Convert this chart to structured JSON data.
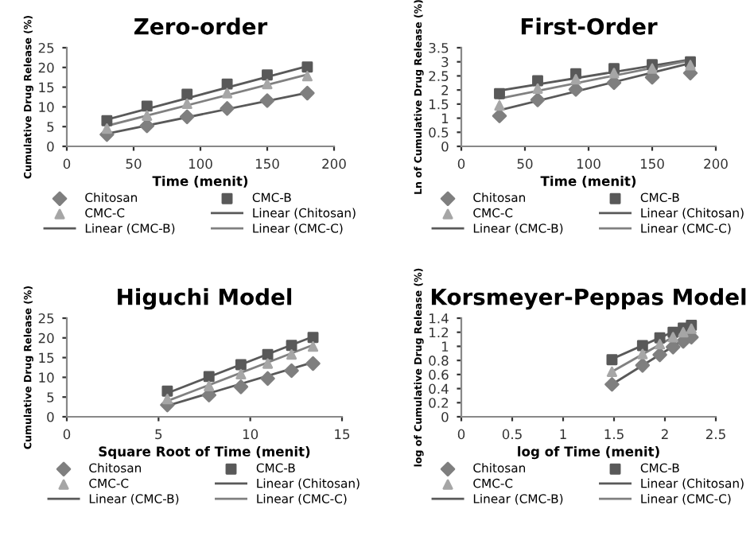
{
  "chart_data": [
    {
      "type": "scatter",
      "title": "Zero-order",
      "xlabel": "Time (menit)",
      "ylabel": "Cumulative Drug Release (%)",
      "xlim": [
        0,
        200
      ],
      "xticks": [
        0,
        50,
        100,
        150,
        200
      ],
      "ylim": [
        0,
        25
      ],
      "yticks": [
        0,
        5,
        10,
        15,
        20,
        25
      ],
      "legend": "bottom",
      "series": [
        {
          "name": "Chitosan",
          "marker": "diamond",
          "color": "#7f7f7f",
          "x": [
            30,
            60,
            90,
            120,
            150,
            180
          ],
          "values": [
            3,
            5.2,
            7.5,
            9.6,
            11.6,
            13.5
          ]
        },
        {
          "name": "CMC-C",
          "marker": "triangle",
          "color": "#a6a6a6",
          "x": [
            30,
            60,
            90,
            120,
            150,
            180
          ],
          "values": [
            4.5,
            7.8,
            10.8,
            13.5,
            15.8,
            17.8
          ]
        },
        {
          "name": "Linear (CMC-B)",
          "type": "line",
          "line_style": "solid",
          "color": "#595959",
          "x": [
            30,
            180
          ],
          "values": [
            6.8,
            20.3
          ]
        },
        {
          "name": "CMC-B",
          "marker": "square",
          "color": "#595959",
          "x": [
            30,
            60,
            90,
            120,
            150,
            180
          ],
          "values": [
            6.5,
            10.2,
            13.2,
            15.8,
            18.1,
            20.1
          ]
        },
        {
          "name": "Linear (Chitosan)",
          "type": "line",
          "line_style": "solid",
          "color": "#595959",
          "x": [
            30,
            180
          ],
          "values": [
            3.2,
            13.6
          ]
        },
        {
          "name": "Linear (CMC-C)",
          "type": "line",
          "line_style": "solid",
          "color": "#808080",
          "x": [
            30,
            180
          ],
          "values": [
            5.2,
            18.2
          ]
        }
      ]
    },
    {
      "type": "scatter",
      "title": "First-Order",
      "xlabel": "Time (menit)",
      "ylabel": "Ln of Cumulative Drug Release (%)",
      "xlim": [
        0,
        200
      ],
      "xticks": [
        0,
        50,
        100,
        150,
        200
      ],
      "ylim": [
        0,
        3.5
      ],
      "yticks": [
        0,
        0.5,
        1,
        1.5,
        2,
        2.5,
        3,
        3.5
      ],
      "legend": "bottom",
      "series": [
        {
          "name": "Chitosan",
          "marker": "diamond",
          "color": "#7f7f7f",
          "x": [
            30,
            60,
            90,
            120,
            150,
            180
          ],
          "values": [
            1.08,
            1.65,
            2.02,
            2.26,
            2.45,
            2.6
          ]
        },
        {
          "name": "CMC-C",
          "marker": "triangle",
          "color": "#a6a6a6",
          "x": [
            30,
            60,
            90,
            120,
            150,
            180
          ],
          "values": [
            1.45,
            2.05,
            2.38,
            2.6,
            2.76,
            2.88
          ]
        },
        {
          "name": "Linear (CMC-B)",
          "type": "line",
          "line_style": "solid",
          "color": "#595959",
          "x": [
            30,
            180
          ],
          "values": [
            1.98,
            3.08
          ]
        },
        {
          "name": "CMC-B",
          "marker": "square",
          "color": "#595959",
          "x": [
            30,
            60,
            90,
            120,
            150,
            180
          ],
          "values": [
            1.87,
            2.33,
            2.58,
            2.76,
            2.9,
            3.0
          ]
        },
        {
          "name": "Linear (Chitosan)",
          "type": "line",
          "line_style": "solid",
          "color": "#595959",
          "x": [
            30,
            180
          ],
          "values": [
            1.28,
            2.95
          ]
        },
        {
          "name": "Linear (CMC-C)",
          "type": "line",
          "line_style": "solid",
          "color": "#808080",
          "x": [
            30,
            180
          ],
          "values": [
            1.7,
            3.05
          ]
        }
      ]
    },
    {
      "type": "scatter",
      "title": "Higuchi Model",
      "xlabel": "Square Root of Time (menit)",
      "ylabel": "Cumulative Drug Release (%)",
      "xlim": [
        0,
        15
      ],
      "xticks": [
        0,
        5,
        10,
        15
      ],
      "ylim": [
        0,
        25
      ],
      "yticks": [
        0,
        5,
        10,
        15,
        20,
        25
      ],
      "legend": "bottom",
      "series": [
        {
          "name": "Chitosan",
          "marker": "diamond",
          "color": "#7f7f7f",
          "x": [
            5.48,
            7.75,
            9.49,
            10.95,
            12.25,
            13.42
          ],
          "values": [
            3,
            5.5,
            7.6,
            9.7,
            11.7,
            13.5
          ]
        },
        {
          "name": "CMC-C",
          "marker": "triangle",
          "color": "#a6a6a6",
          "x": [
            5.48,
            7.75,
            9.49,
            10.95,
            12.25,
            13.42
          ],
          "values": [
            4.5,
            7.8,
            10.8,
            13.5,
            15.8,
            17.8
          ]
        },
        {
          "name": "Linear (CMC-B)",
          "type": "line",
          "line_style": "solid",
          "color": "#595959",
          "x": [
            5.48,
            13.42
          ],
          "values": [
            6,
            20.3
          ]
        },
        {
          "name": "CMC-B",
          "marker": "square",
          "color": "#595959",
          "x": [
            5.48,
            7.75,
            9.49,
            10.95,
            12.25,
            13.42
          ],
          "values": [
            6.5,
            10.2,
            13.2,
            15.8,
            18.1,
            20.1
          ]
        },
        {
          "name": "Linear (Chitosan)",
          "type": "line",
          "line_style": "solid",
          "color": "#595959",
          "x": [
            5.48,
            13.42
          ],
          "values": [
            2.8,
            13.8
          ]
        },
        {
          "name": "Linear (CMC-C)",
          "type": "line",
          "line_style": "solid",
          "color": "#808080",
          "x": [
            5.48,
            13.42
          ],
          "values": [
            4,
            18.2
          ]
        }
      ]
    },
    {
      "type": "scatter",
      "title": "Korsmeyer-Peppas Model",
      "xlabel": "log of Time (menit)",
      "ylabel": "log of Cumulative Drug Release (%)",
      "xlim": [
        0,
        2.5
      ],
      "xticks": [
        0,
        0.5,
        1,
        1.5,
        2,
        2.5
      ],
      "ylim": [
        0,
        1.4
      ],
      "yticks": [
        0,
        0.2,
        0.4,
        0.6,
        0.8,
        1,
        1.2,
        1.4
      ],
      "legend": "bottom",
      "series": [
        {
          "name": "Chitosan",
          "marker": "diamond",
          "color": "#7f7f7f",
          "x": [
            1.48,
            1.78,
            1.95,
            2.08,
            2.18,
            2.26
          ],
          "values": [
            0.46,
            0.73,
            0.88,
            0.99,
            1.07,
            1.13
          ]
        },
        {
          "name": "CMC-C",
          "marker": "triangle",
          "color": "#a6a6a6",
          "x": [
            1.48,
            1.78,
            1.95,
            2.08,
            2.18,
            2.26
          ],
          "values": [
            0.64,
            0.89,
            1.03,
            1.13,
            1.2,
            1.25
          ]
        },
        {
          "name": "Linear (CMC-B)",
          "type": "line",
          "line_style": "solid",
          "color": "#595959",
          "x": [
            1.48,
            2.26
          ],
          "values": [
            0.82,
            1.32
          ]
        },
        {
          "name": "CMC-B",
          "marker": "square",
          "color": "#595959",
          "x": [
            1.48,
            1.78,
            1.95,
            2.08,
            2.18,
            2.26
          ],
          "values": [
            0.81,
            1.01,
            1.12,
            1.2,
            1.26,
            1.3
          ]
        },
        {
          "name": "Linear (Chitosan)",
          "type": "line",
          "line_style": "solid",
          "color": "#595959",
          "x": [
            1.48,
            2.26
          ],
          "values": [
            0.46,
            1.16
          ]
        },
        {
          "name": "Linear (CMC-C)",
          "type": "line",
          "line_style": "solid",
          "color": "#808080",
          "x": [
            1.48,
            2.26
          ],
          "values": [
            0.64,
            1.28
          ]
        }
      ]
    }
  ]
}
